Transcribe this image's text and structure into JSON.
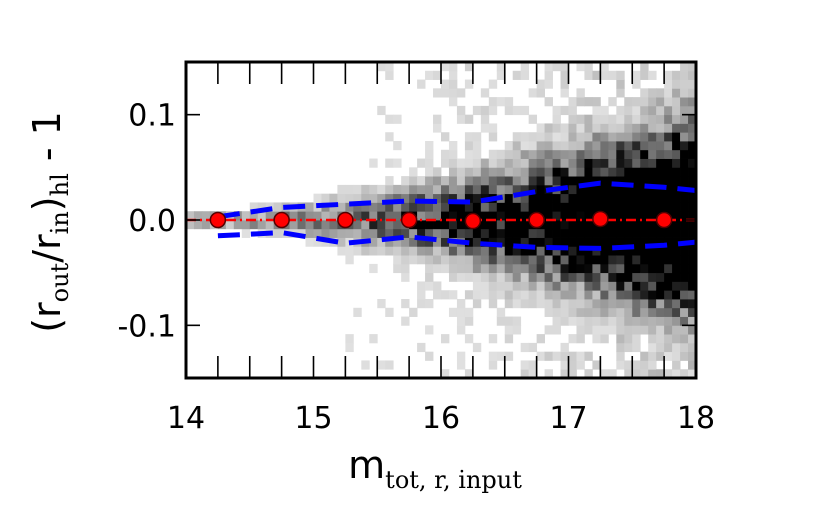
{
  "chart_data": {
    "type": "scatter",
    "xlabel": {
      "main": "m",
      "sub": "tot, r, input"
    },
    "ylabel": {
      "pre": "(r",
      "sub1": "out",
      "mid": "/r",
      "sub2": "in",
      "post": ")",
      "sub3": "hl",
      "suffix": " - 1"
    },
    "xlim": [
      14,
      18
    ],
    "ylim": [
      -0.15,
      0.15
    ],
    "xticks": [
      14,
      15,
      16,
      17,
      18
    ],
    "xtick_labels": [
      "14",
      "15",
      "16",
      "17",
      "18"
    ],
    "yticks": [
      -0.1,
      0.0,
      0.1
    ],
    "ytick_labels": [
      "-0.1",
      "0.0",
      "0.1"
    ],
    "grid": false,
    "background": "2D density histogram (grayscale), density increasing toward fainter magnitudes",
    "series": [
      {
        "kind": "median_points",
        "color": "#ff0000",
        "x": [
          14.25,
          14.75,
          15.25,
          15.75,
          16.25,
          16.75,
          17.25,
          17.75
        ],
        "y": [
          0.0,
          0.0,
          0.0,
          0.0,
          -0.001,
          0.0,
          0.001,
          0.0
        ]
      },
      {
        "kind": "zero_line",
        "color": "#ff0000",
        "style": "dash-dot",
        "x": [
          14.0,
          18.0
        ],
        "y": [
          0.0,
          0.0
        ]
      },
      {
        "kind": "upper_envelope",
        "color": "#0000ff",
        "style": "dashed",
        "x": [
          14.25,
          14.75,
          15.25,
          15.75,
          16.25,
          16.75,
          17.25,
          17.75,
          18.0
        ],
        "y": [
          0.003,
          0.012,
          0.015,
          0.018,
          0.017,
          0.027,
          0.035,
          0.031,
          0.028
        ]
      },
      {
        "kind": "lower_envelope",
        "color": "#0000ff",
        "style": "dashed",
        "x": [
          14.25,
          14.75,
          15.25,
          15.75,
          16.25,
          16.75,
          17.25,
          17.75,
          18.0
        ],
        "y": [
          -0.015,
          -0.012,
          -0.022,
          -0.016,
          -0.022,
          -0.026,
          -0.027,
          -0.024,
          -0.021
        ]
      }
    ]
  }
}
